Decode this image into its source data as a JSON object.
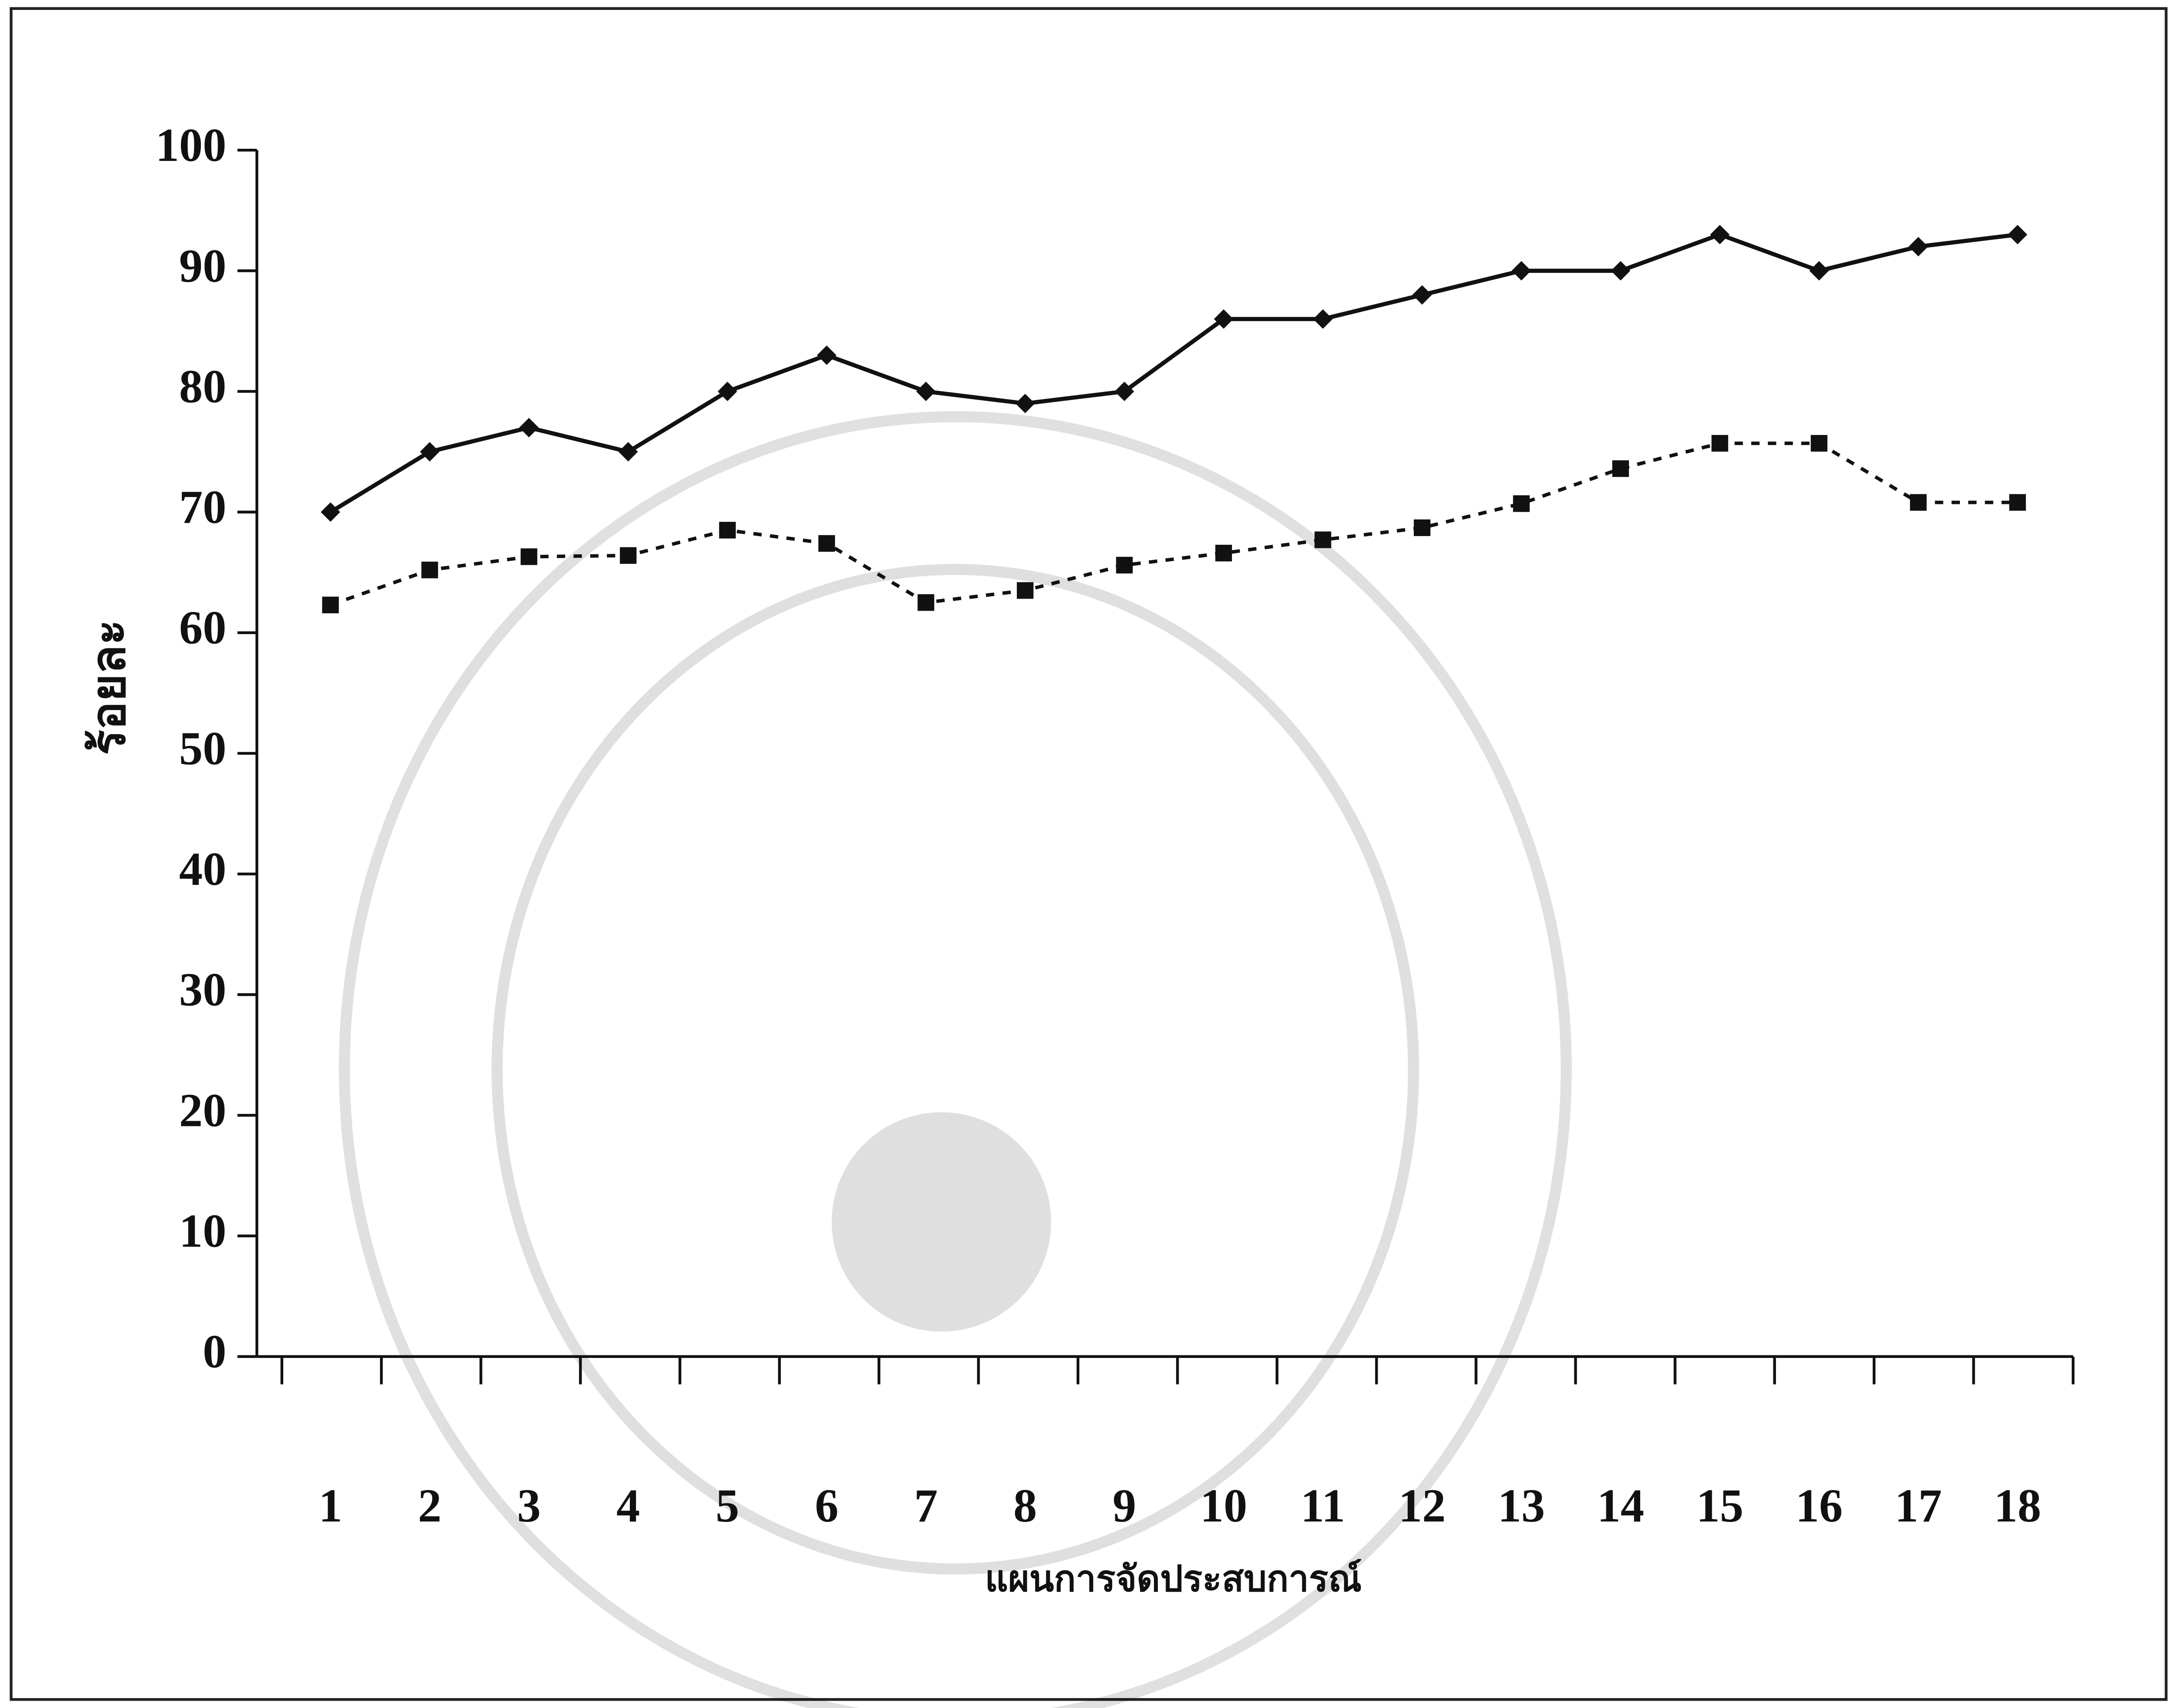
{
  "chart_data": {
    "type": "line",
    "x_label": "แผนการจัดประสบการณ์",
    "y_label": "ร้อยละ",
    "categories": [
      "1",
      "2",
      "3",
      "4",
      "5",
      "6",
      "7",
      "8",
      "9",
      "10",
      "11",
      "12",
      "13",
      "14",
      "15",
      "16",
      "17",
      "18"
    ],
    "series": [
      {
        "color": "#111111",
        "style": "solid",
        "marker": "diamond",
        "values": [
          70,
          75,
          77,
          75,
          80,
          83,
          80,
          79,
          80,
          86,
          86,
          88,
          90,
          90,
          93,
          90,
          92,
          93
        ]
      },
      {
        "color": "#111111",
        "style": "dotted",
        "marker": "square",
        "values": [
          62.3,
          65.2,
          66.3,
          66.4,
          68.5,
          67.4,
          62.5,
          63.5,
          65.6,
          66.6,
          67.7,
          68.7,
          70.7,
          73.6,
          75.7,
          75.7,
          70.8,
          70.8
        ]
      }
    ],
    "ylim": [
      0,
      100
    ],
    "yticks": [
      0,
      10,
      20,
      30,
      40,
      50,
      60,
      70,
      80,
      90,
      100
    ],
    "grid": false
  }
}
